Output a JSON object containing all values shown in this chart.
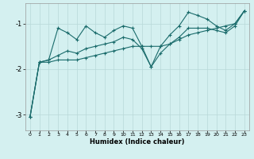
{
  "title": "",
  "xlabel": "Humidex (Indice chaleur)",
  "ylabel": "",
  "bg_color": "#d4f0f0",
  "line_color": "#1a6b6b",
  "grid_color": "#b8d8d8",
  "xlim": [
    -0.5,
    23.5
  ],
  "ylim": [
    -3.35,
    -0.55
  ],
  "xticks": [
    0,
    1,
    2,
    3,
    4,
    5,
    6,
    7,
    8,
    9,
    10,
    11,
    12,
    13,
    14,
    15,
    16,
    17,
    18,
    19,
    20,
    21,
    22,
    23
  ],
  "yticks": [
    -3,
    -2,
    -1
  ],
  "line1": [
    [
      0,
      -3.05
    ],
    [
      1,
      -1.85
    ],
    [
      2,
      -1.8
    ],
    [
      3,
      -1.1
    ],
    [
      4,
      -1.2
    ],
    [
      5,
      -1.35
    ],
    [
      6,
      -1.05
    ],
    [
      7,
      -1.2
    ],
    [
      8,
      -1.3
    ],
    [
      9,
      -1.15
    ],
    [
      10,
      -1.05
    ],
    [
      11,
      -1.1
    ],
    [
      12,
      -1.5
    ],
    [
      13,
      -1.95
    ],
    [
      14,
      -1.5
    ],
    [
      15,
      -1.25
    ],
    [
      16,
      -1.05
    ],
    [
      17,
      -0.75
    ],
    [
      18,
      -0.82
    ],
    [
      19,
      -0.9
    ],
    [
      20,
      -1.05
    ],
    [
      21,
      -1.15
    ],
    [
      22,
      -1.0
    ],
    [
      23,
      -0.72
    ]
  ],
  "line2": [
    [
      0,
      -3.05
    ],
    [
      1,
      -1.85
    ],
    [
      2,
      -1.8
    ],
    [
      3,
      -1.7
    ],
    [
      4,
      -1.6
    ],
    [
      5,
      -1.65
    ],
    [
      6,
      -1.55
    ],
    [
      7,
      -1.5
    ],
    [
      8,
      -1.45
    ],
    [
      9,
      -1.4
    ],
    [
      10,
      -1.3
    ],
    [
      11,
      -1.35
    ],
    [
      12,
      -1.55
    ],
    [
      13,
      -1.95
    ],
    [
      14,
      -1.65
    ],
    [
      15,
      -1.45
    ],
    [
      16,
      -1.3
    ],
    [
      17,
      -1.1
    ],
    [
      18,
      -1.1
    ],
    [
      19,
      -1.1
    ],
    [
      20,
      -1.15
    ],
    [
      21,
      -1.2
    ],
    [
      22,
      -1.05
    ],
    [
      23,
      -0.72
    ]
  ],
  "line3": [
    [
      0,
      -3.05
    ],
    [
      1,
      -1.85
    ],
    [
      2,
      -1.85
    ],
    [
      3,
      -1.8
    ],
    [
      4,
      -1.8
    ],
    [
      5,
      -1.8
    ],
    [
      6,
      -1.75
    ],
    [
      7,
      -1.7
    ],
    [
      8,
      -1.65
    ],
    [
      9,
      -1.6
    ],
    [
      10,
      -1.55
    ],
    [
      11,
      -1.5
    ],
    [
      12,
      -1.5
    ],
    [
      13,
      -1.5
    ],
    [
      14,
      -1.5
    ],
    [
      15,
      -1.45
    ],
    [
      16,
      -1.35
    ],
    [
      17,
      -1.25
    ],
    [
      18,
      -1.2
    ],
    [
      19,
      -1.15
    ],
    [
      20,
      -1.1
    ],
    [
      21,
      -1.05
    ],
    [
      22,
      -1.0
    ],
    [
      23,
      -0.72
    ]
  ]
}
